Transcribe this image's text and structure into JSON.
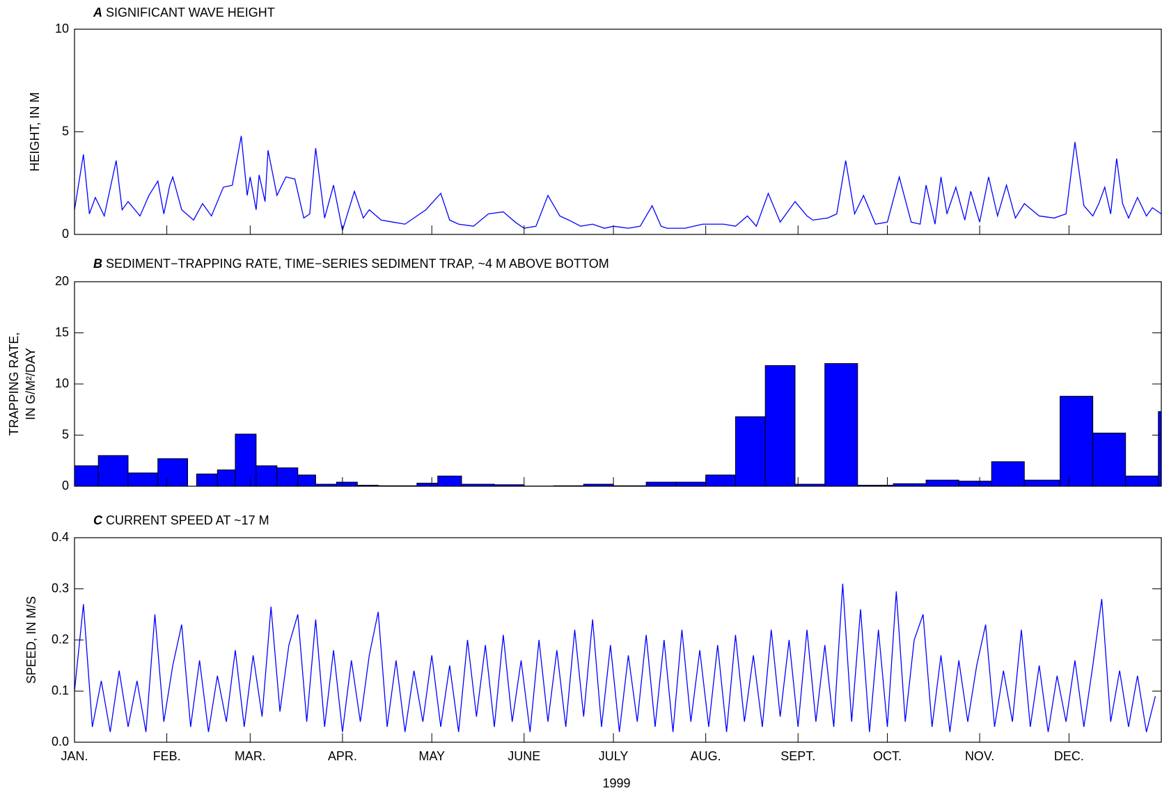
{
  "chart_data": [
    {
      "type": "line",
      "panel": "A",
      "title": "SIGNIFICANT WAVE HEIGHT",
      "ylabel": [
        "HEIGHT, IN M"
      ],
      "xlim": [
        0,
        365
      ],
      "xticks": [
        0,
        31,
        59,
        90,
        120,
        151,
        181,
        212,
        243,
        273,
        304,
        334
      ],
      "ylim": [
        0,
        10
      ],
      "yticks": [
        0,
        5,
        10
      ],
      "series": [
        {
          "color": "#0000ff",
          "x": [
            0,
            3,
            5,
            7,
            10,
            14,
            16,
            18,
            22,
            25,
            28,
            30,
            32,
            33,
            36,
            40,
            43,
            46,
            50,
            53,
            56,
            58,
            59,
            61,
            62,
            64,
            65,
            68,
            71,
            74,
            77,
            79,
            81,
            84,
            87,
            90,
            94,
            97,
            99,
            103,
            107,
            111,
            114,
            118,
            123,
            126,
            129,
            134,
            139,
            144,
            148,
            151,
            155,
            159,
            163,
            166,
            170,
            174,
            178,
            181,
            186,
            190,
            194,
            197,
            199,
            205,
            211,
            218,
            222,
            226,
            229,
            233,
            237,
            242,
            246,
            248,
            253,
            256,
            259,
            262,
            265,
            269,
            273,
            277,
            281,
            284,
            286,
            289,
            291,
            293,
            296,
            299,
            301,
            304,
            307,
            310,
            313,
            316,
            319,
            324,
            329,
            333,
            336,
            339,
            342,
            344,
            346,
            348,
            350,
            352,
            354,
            357,
            360,
            362,
            365
          ],
          "values": [
            1.2,
            3.9,
            1.0,
            1.8,
            0.9,
            3.6,
            1.2,
            1.6,
            0.9,
            1.9,
            2.6,
            1.0,
            2.4,
            2.8,
            1.2,
            0.7,
            1.5,
            0.9,
            2.3,
            2.4,
            4.8,
            1.9,
            2.8,
            1.2,
            2.9,
            1.6,
            4.1,
            1.9,
            2.8,
            2.7,
            0.8,
            1.0,
            4.2,
            0.8,
            2.4,
            0.2,
            2.1,
            0.8,
            1.2,
            0.7,
            0.6,
            0.5,
            0.8,
            1.2,
            2.0,
            0.7,
            0.5,
            0.4,
            1.0,
            1.1,
            0.6,
            0.3,
            0.4,
            1.9,
            0.9,
            0.7,
            0.4,
            0.5,
            0.3,
            0.4,
            0.3,
            0.4,
            1.4,
            0.4,
            0.3,
            0.3,
            0.5,
            0.5,
            0.4,
            0.9,
            0.4,
            2.0,
            0.6,
            1.6,
            0.9,
            0.7,
            0.8,
            1.0,
            3.6,
            1.0,
            1.9,
            0.5,
            0.6,
            2.8,
            0.6,
            0.5,
            2.4,
            0.5,
            2.8,
            1.0,
            2.3,
            0.7,
            2.1,
            0.6,
            2.8,
            0.9,
            2.4,
            0.8,
            1.5,
            0.9,
            0.8,
            1.0,
            4.5,
            1.4,
            0.9,
            1.5,
            2.3,
            1.0,
            3.7,
            1.5,
            0.8,
            1.8,
            0.9,
            1.3,
            1.0
          ]
        }
      ]
    },
    {
      "type": "histogram",
      "panel": "B",
      "title": "SEDIMENT−TRAPPING RATE, TIME−SERIES SEDIMENT TRAP, ~4 M ABOVE BOTTOM",
      "ylabel": [
        "TRAPPING RATE,",
        "IN G/M²/DAY"
      ],
      "xlim": [
        0,
        365
      ],
      "xticks": [
        0,
        31,
        59,
        90,
        120,
        151,
        181,
        212,
        243,
        273,
        304,
        334
      ],
      "ylim": [
        0,
        20
      ],
      "yticks": [
        0,
        5,
        10,
        15,
        20
      ],
      "color": "#0000ff",
      "bins": [
        0,
        8,
        18,
        28,
        38,
        41,
        48,
        54,
        61,
        68,
        75,
        81,
        88,
        95,
        102,
        115,
        122,
        130,
        141,
        151,
        161,
        171,
        181,
        192,
        202,
        212,
        222,
        232,
        242,
        252,
        263,
        275,
        286,
        297,
        308,
        319,
        331,
        342,
        353,
        364,
        365
      ],
      "values": [
        2.0,
        3.0,
        1.3,
        2.7,
        null,
        1.2,
        1.6,
        5.1,
        2.0,
        1.8,
        1.1,
        0.2,
        0.4,
        0.1,
        0.05,
        0.3,
        1.0,
        0.2,
        0.15,
        0.02,
        0.05,
        0.2,
        0.05,
        0.4,
        0.4,
        1.1,
        6.8,
        11.8,
        0.2,
        12.0,
        0.1,
        0.25,
        0.6,
        0.5,
        2.4,
        0.6,
        8.8,
        5.2,
        1.0,
        7.3
      ]
    },
    {
      "type": "line",
      "panel": "C",
      "title": "CURRENT SPEED AT ~17 M",
      "ylabel": [
        "SPEED, IN M/S"
      ],
      "xlabel": "1999",
      "xlim": [
        0,
        365
      ],
      "xticks": [
        {
          "value": 0,
          "label": "JAN."
        },
        {
          "value": 31,
          "label": "FEB."
        },
        {
          "value": 59,
          "label": "MAR."
        },
        {
          "value": 90,
          "label": "APR."
        },
        {
          "value": 120,
          "label": "MAY"
        },
        {
          "value": 151,
          "label": "JUNE"
        },
        {
          "value": 181,
          "label": "JULY"
        },
        {
          "value": 212,
          "label": "AUG."
        },
        {
          "value": 243,
          "label": "SEPT."
        },
        {
          "value": 273,
          "label": "OCT."
        },
        {
          "value": 304,
          "label": "NOV."
        },
        {
          "value": 334,
          "label": "DEC."
        }
      ],
      "ylim": [
        0,
        0.4
      ],
      "yticks": [
        {
          "value": 0,
          "label": "0.0"
        },
        0.1,
        0.2,
        0.3,
        0.4
      ],
      "series": [
        {
          "color": "#0000ff",
          "x": [
            0,
            3,
            6,
            9,
            12,
            15,
            18,
            21,
            24,
            27,
            30,
            33,
            36,
            39,
            42,
            45,
            48,
            51,
            54,
            57,
            60,
            63,
            66,
            69,
            72,
            75,
            78,
            81,
            84,
            87,
            90,
            93,
            96,
            99,
            102,
            105,
            108,
            111,
            114,
            117,
            120,
            123,
            126,
            129,
            132,
            135,
            138,
            141,
            144,
            147,
            150,
            153,
            156,
            159,
            162,
            165,
            168,
            171,
            174,
            177,
            180,
            183,
            186,
            189,
            192,
            195,
            198,
            201,
            204,
            207,
            210,
            213,
            216,
            219,
            222,
            225,
            228,
            231,
            234,
            237,
            240,
            243,
            246,
            249,
            252,
            255,
            258,
            261,
            264,
            267,
            270,
            273,
            276,
            279,
            282,
            285,
            288,
            291,
            294,
            297,
            300,
            303,
            306,
            309,
            312,
            315,
            318,
            321,
            324,
            327,
            330,
            333,
            336,
            339,
            342,
            345,
            348,
            351,
            354,
            357,
            360,
            363
          ],
          "values": [
            0.1,
            0.27,
            0.03,
            0.12,
            0.02,
            0.14,
            0.03,
            0.12,
            0.02,
            0.25,
            0.04,
            0.15,
            0.23,
            0.03,
            0.16,
            0.02,
            0.13,
            0.04,
            0.18,
            0.03,
            0.17,
            0.05,
            0.265,
            0.06,
            0.19,
            0.25,
            0.04,
            0.24,
            0.03,
            0.18,
            0.02,
            0.16,
            0.04,
            0.17,
            0.255,
            0.03,
            0.16,
            0.02,
            0.14,
            0.04,
            0.17,
            0.03,
            0.15,
            0.02,
            0.2,
            0.05,
            0.19,
            0.03,
            0.21,
            0.04,
            0.16,
            0.02,
            0.2,
            0.04,
            0.18,
            0.03,
            0.22,
            0.05,
            0.24,
            0.03,
            0.19,
            0.02,
            0.17,
            0.04,
            0.21,
            0.03,
            0.2,
            0.02,
            0.22,
            0.04,
            0.18,
            0.03,
            0.19,
            0.02,
            0.21,
            0.04,
            0.17,
            0.03,
            0.22,
            0.05,
            0.2,
            0.03,
            0.22,
            0.04,
            0.19,
            0.03,
            0.31,
            0.04,
            0.26,
            0.02,
            0.22,
            0.03,
            0.295,
            0.04,
            0.2,
            0.25,
            0.03,
            0.17,
            0.02,
            0.16,
            0.04,
            0.15,
            0.23,
            0.03,
            0.14,
            0.04,
            0.22,
            0.03,
            0.15,
            0.02,
            0.13,
            0.04,
            0.16,
            0.03,
            0.15,
            0.28,
            0.04,
            0.14,
            0.03,
            0.13,
            0.02,
            0.09
          ]
        }
      ]
    }
  ]
}
